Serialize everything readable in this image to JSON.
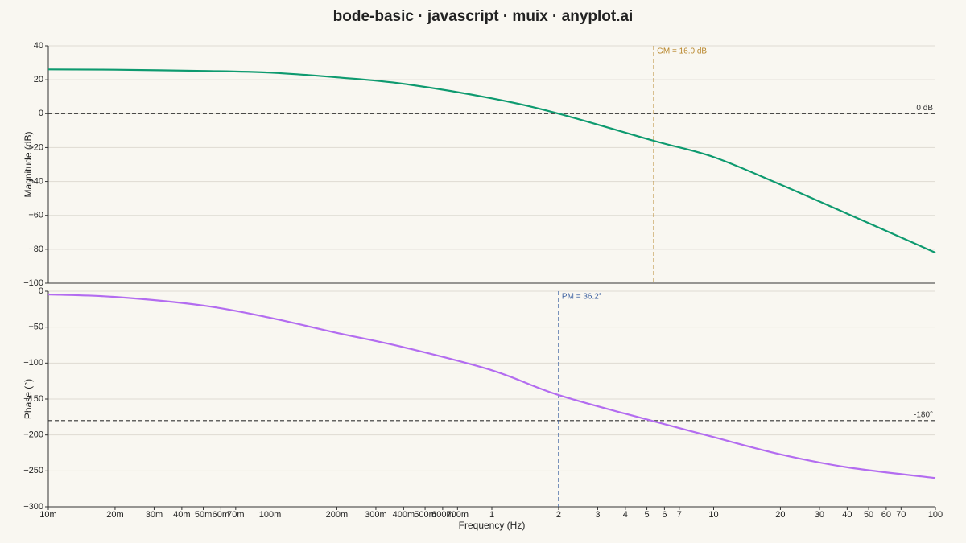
{
  "title": "bode-basic · javascript · muix · anyplot.ai",
  "chart_data": [
    {
      "type": "line",
      "ylabel": "Magnitude (dB)",
      "log_x": true,
      "grid": true,
      "xlim": [
        0.01,
        100
      ],
      "ylim": [
        -100,
        40
      ],
      "yticks": [
        {
          "value": 40,
          "label": "40"
        },
        {
          "value": 20,
          "label": "20"
        },
        {
          "value": 0,
          "label": "0"
        },
        {
          "value": -20,
          "label": "−20"
        },
        {
          "value": -40,
          "label": "−40"
        },
        {
          "value": -60,
          "label": "−60"
        },
        {
          "value": -80,
          "label": "−80"
        },
        {
          "value": -100,
          "label": "−100"
        }
      ],
      "x": [
        0.01,
        0.02,
        0.05,
        0.1,
        0.2,
        0.4,
        1,
        2,
        5.37,
        10,
        20,
        40,
        100
      ],
      "series": [
        {
          "color": "#0e9a6f",
          "values": [
            26.1,
            25.9,
            25.2,
            24.2,
            21.4,
            17.6,
            9,
            0,
            -16,
            -25.6,
            -41.8,
            -59,
            -82
          ]
        }
      ],
      "reference_lines": [
        {
          "y": 0,
          "label": "0 dB",
          "color": "#333333"
        },
        {
          "x": 5.37,
          "label": "GM = 16.0 dB",
          "color": "#b8862b"
        }
      ]
    },
    {
      "type": "line",
      "ylabel": "Phase (°)",
      "xlabel": "Frequency (Hz)",
      "log_x": true,
      "grid": true,
      "xlim": [
        0.01,
        100
      ],
      "ylim": [
        -300,
        0
      ],
      "xticks": [
        {
          "value": 0.01,
          "label": "10m"
        },
        {
          "value": 0.02,
          "label": "20m"
        },
        {
          "value": 0.03,
          "label": "30m"
        },
        {
          "value": 0.04,
          "label": "40m"
        },
        {
          "value": 0.05,
          "label": "50m"
        },
        {
          "value": 0.06,
          "label": "60m"
        },
        {
          "value": 0.07,
          "label": "70m"
        },
        {
          "value": 0.1,
          "label": "100m"
        },
        {
          "value": 0.2,
          "label": "200m"
        },
        {
          "value": 0.3,
          "label": "300m"
        },
        {
          "value": 0.4,
          "label": "400m"
        },
        {
          "value": 0.5,
          "label": "500m"
        },
        {
          "value": 0.6,
          "label": "600m"
        },
        {
          "value": 0.7,
          "label": "700m"
        },
        1,
        2,
        3,
        4,
        5,
        6,
        7,
        10,
        20,
        30,
        40,
        50,
        60,
        70,
        100
      ],
      "yticks": [
        0,
        {
          "value": -50,
          "label": "−50"
        },
        {
          "value": -100,
          "label": "−100"
        },
        {
          "value": -150,
          "label": "−150"
        },
        {
          "value": -200,
          "label": "−200"
        },
        {
          "value": -250,
          "label": "−250"
        },
        {
          "value": -300,
          "label": "−300"
        }
      ],
      "x": [
        0.01,
        0.02,
        0.05,
        0.1,
        0.2,
        0.4,
        1,
        2,
        5.37,
        10,
        20,
        40,
        100
      ],
      "series": [
        {
          "color": "#b36cf0",
          "values": [
            -4.5,
            -8,
            -20,
            -37,
            -58,
            -78,
            -110,
            -144.5,
            -181,
            -203,
            -227,
            -245,
            -260
          ]
        }
      ],
      "reference_lines": [
        {
          "y": -180,
          "label": "-180°",
          "color": "#333333"
        },
        {
          "x": 2,
          "label": "PM = 36.2°",
          "color": "#3a5fa0"
        }
      ]
    }
  ]
}
